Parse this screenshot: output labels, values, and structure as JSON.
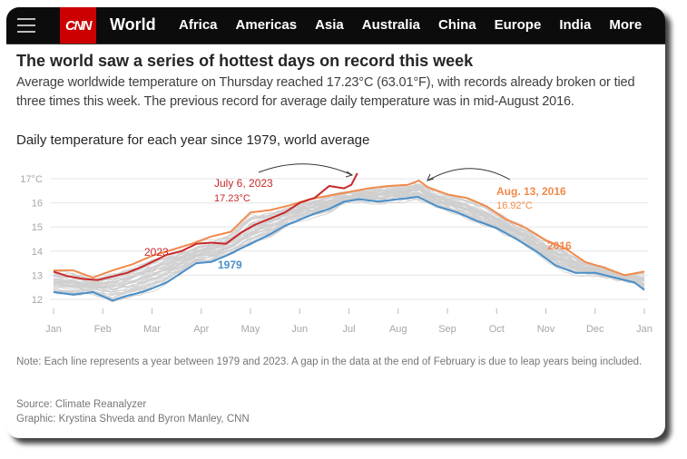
{
  "nav": {
    "menu_icon": "hamburger-menu-icon",
    "logo": "CNN",
    "section": "World",
    "links": [
      "Africa",
      "Americas",
      "Asia",
      "Australia",
      "China",
      "Europe",
      "India",
      "More"
    ]
  },
  "article": {
    "headline": "The world saw a series of hottest days on record this week",
    "dek": "Average worldwide temperature on Thursday reached 17.23°C (63.01°F), with records already broken or tied three times this week. The previous record for average daily temperature was in mid-August 2016.",
    "note": "Note: Each line represents a year between 1979 and 2023. A gap in the data at the end of February is due to leap years being included.",
    "source": "Source: Climate Reanalyzer",
    "credit": "Graphic: Krystina Shveda and Byron Manley, CNN"
  },
  "colors": {
    "brand_red": "#cc0000",
    "series_2023": "#c8282a",
    "series_2016": "#f08a4b",
    "series_1979": "#4a8fc9",
    "other_years": "#cfcfcf"
  },
  "chart_data": {
    "type": "line",
    "title": "Daily temperature for each year since 1979, world average",
    "xlabel": "",
    "ylabel": "°C",
    "x_ticks": [
      "Jan",
      "Feb",
      "Mar",
      "Apr",
      "May",
      "Jun",
      "Jul",
      "Aug",
      "Sep",
      "Oct",
      "Nov",
      "Dec",
      "Jan"
    ],
    "y_ticks": [
      "12",
      "13",
      "14",
      "15",
      "16",
      "17°C"
    ],
    "ylim": [
      11.9,
      17.3
    ],
    "xlim_month": [
      0,
      12
    ],
    "grid": true,
    "series": [
      {
        "name": "2023",
        "color_key": "series_2023",
        "x_month": [
          0,
          0.3,
          0.6,
          0.9,
          1.2,
          1.5,
          1.8,
          2.0,
          2.3,
          2.6,
          2.9,
          3.2,
          3.5,
          3.8,
          4.1,
          4.4,
          4.7,
          5.0,
          5.3,
          5.6,
          5.9,
          6.05,
          6.17
        ],
        "values": [
          13.15,
          12.95,
          12.85,
          12.8,
          12.95,
          13.1,
          13.35,
          13.55,
          13.85,
          14.0,
          14.3,
          14.35,
          14.3,
          14.75,
          15.1,
          15.35,
          15.6,
          16.0,
          16.2,
          16.7,
          16.6,
          16.75,
          17.23
        ]
      },
      {
        "name": "2016",
        "color_key": "series_2016",
        "x_month": [
          0,
          0.4,
          0.8,
          1.2,
          1.6,
          2.0,
          2.4,
          2.8,
          3.2,
          3.6,
          4.0,
          4.4,
          4.8,
          5.2,
          5.6,
          6.0,
          6.4,
          6.8,
          7.2,
          7.42,
          7.6,
          8.0,
          8.4,
          8.8,
          9.2,
          9.6,
          10.0,
          10.4,
          10.8,
          11.2,
          11.6,
          12.0
        ],
        "values": [
          13.2,
          13.2,
          12.9,
          13.2,
          13.45,
          13.8,
          14.05,
          14.3,
          14.6,
          14.8,
          15.6,
          15.7,
          15.9,
          16.15,
          16.3,
          16.45,
          16.6,
          16.7,
          16.75,
          16.92,
          16.65,
          16.35,
          16.2,
          15.85,
          15.3,
          14.95,
          14.45,
          14.1,
          13.55,
          13.3,
          13.0,
          13.15
        ]
      },
      {
        "name": "1979",
        "color_key": "series_1979",
        "x_month": [
          0,
          0.4,
          0.8,
          1.2,
          1.5,
          1.8,
          2.0,
          2.3,
          2.6,
          2.9,
          3.2,
          3.5,
          3.8,
          4.1,
          4.4,
          4.7,
          5.0,
          5.3,
          5.6,
          5.9,
          6.2,
          6.6,
          7.0,
          7.4,
          7.8,
          8.2,
          8.6,
          9.0,
          9.4,
          9.8,
          10.2,
          10.6,
          11.0,
          11.4,
          11.8,
          12.0
        ],
        "values": [
          12.3,
          12.2,
          12.3,
          11.95,
          12.15,
          12.3,
          12.45,
          12.7,
          13.1,
          13.5,
          13.55,
          13.8,
          14.1,
          14.4,
          14.7,
          15.05,
          15.3,
          15.55,
          15.75,
          16.05,
          16.15,
          16.05,
          16.15,
          16.25,
          15.85,
          15.6,
          15.25,
          14.95,
          14.5,
          14.0,
          13.4,
          13.1,
          13.1,
          12.9,
          12.7,
          12.4
        ]
      }
    ],
    "background_series": {
      "description": "Each other year 1979–2023 shown as thin gray lines",
      "count": 42
    },
    "annotations": [
      {
        "label": "July 6, 2023",
        "value_label": "17.23°C",
        "color_key": "series_2023"
      },
      {
        "label": "Aug. 13, 2016",
        "value_label": "16.92°C",
        "color_key": "series_2016"
      },
      {
        "label": "2023",
        "color_key": "series_2023"
      },
      {
        "label": "2016",
        "color_key": "series_2016"
      },
      {
        "label": "1979",
        "color_key": "series_1979"
      }
    ]
  }
}
